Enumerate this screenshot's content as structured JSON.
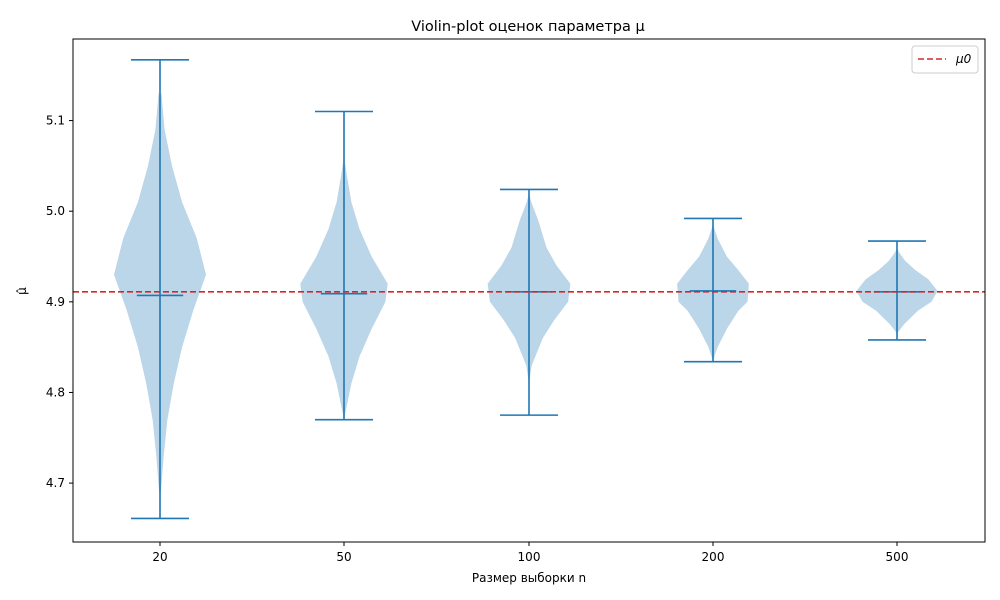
{
  "chart_data": {
    "type": "violin",
    "title": "Violin-plot оценок параметра μ",
    "xlabel": "Размер выборки n",
    "ylabel": "μ̂",
    "ylim": [
      4.635,
      5.19
    ],
    "yticks": [
      4.7,
      4.8,
      4.9,
      5.0,
      5.1
    ],
    "categories": [
      "20",
      "50",
      "100",
      "200",
      "500"
    ],
    "reference_line": {
      "label": "μ0",
      "value": 4.911,
      "color": "#d62728",
      "style": "dashed"
    },
    "legend_position": "top-right",
    "colors": {
      "violin_fill": "#1f77b4",
      "violin_alpha": 0.3,
      "whisker": "#1f77b4"
    },
    "violins": [
      {
        "category": "20",
        "min": 4.661,
        "max": 5.167,
        "median": 4.907,
        "profile": [
          [
            4.69,
            0.02
          ],
          [
            4.73,
            0.08
          ],
          [
            4.77,
            0.16
          ],
          [
            4.81,
            0.3
          ],
          [
            4.85,
            0.48
          ],
          [
            4.89,
            0.72
          ],
          [
            4.93,
            1.0
          ],
          [
            4.97,
            0.8
          ],
          [
            5.01,
            0.48
          ],
          [
            5.05,
            0.26
          ],
          [
            5.09,
            0.1
          ],
          [
            5.13,
            0.03
          ]
        ]
      },
      {
        "category": "50",
        "min": 4.77,
        "max": 5.11,
        "median": 4.909,
        "profile": [
          [
            4.77,
            0.0
          ],
          [
            4.78,
            0.04
          ],
          [
            4.81,
            0.16
          ],
          [
            4.84,
            0.34
          ],
          [
            4.87,
            0.6
          ],
          [
            4.9,
            0.9
          ],
          [
            4.92,
            0.95
          ],
          [
            4.95,
            0.6
          ],
          [
            4.98,
            0.34
          ],
          [
            5.01,
            0.16
          ],
          [
            5.04,
            0.06
          ],
          [
            5.06,
            0.0
          ]
        ]
      },
      {
        "category": "100",
        "min": 4.775,
        "max": 5.024,
        "median": 4.911,
        "profile": [
          [
            4.81,
            0.0
          ],
          [
            4.83,
            0.06
          ],
          [
            4.86,
            0.3
          ],
          [
            4.88,
            0.55
          ],
          [
            4.9,
            0.85
          ],
          [
            4.92,
            0.9
          ],
          [
            4.94,
            0.6
          ],
          [
            4.96,
            0.38
          ],
          [
            4.99,
            0.2
          ],
          [
            5.01,
            0.05
          ],
          [
            5.02,
            0.0
          ]
        ]
      },
      {
        "category": "200",
        "min": 4.834,
        "max": 4.992,
        "median": 4.912,
        "profile": [
          [
            4.835,
            0.0
          ],
          [
            4.85,
            0.1
          ],
          [
            4.87,
            0.3
          ],
          [
            4.89,
            0.55
          ],
          [
            4.9,
            0.75
          ],
          [
            4.92,
            0.78
          ],
          [
            4.935,
            0.55
          ],
          [
            4.95,
            0.3
          ],
          [
            4.97,
            0.1
          ],
          [
            4.985,
            0.0
          ]
        ]
      },
      {
        "category": "500",
        "min": 4.858,
        "max": 4.967,
        "median": 4.911,
        "profile": [
          [
            4.865,
            0.0
          ],
          [
            4.875,
            0.15
          ],
          [
            4.89,
            0.45
          ],
          [
            4.9,
            0.75
          ],
          [
            4.912,
            0.88
          ],
          [
            4.925,
            0.68
          ],
          [
            4.935,
            0.4
          ],
          [
            4.945,
            0.18
          ],
          [
            4.955,
            0.04
          ],
          [
            4.96,
            0.0
          ]
        ]
      }
    ]
  }
}
